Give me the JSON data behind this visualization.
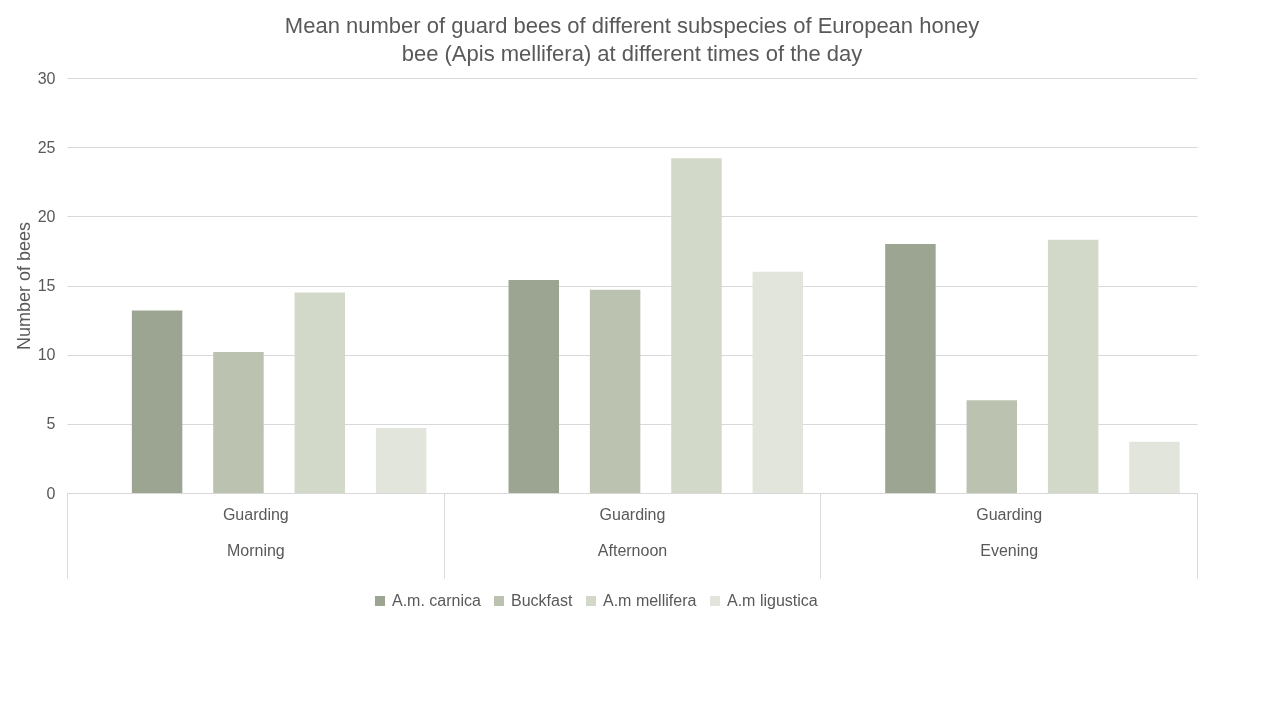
{
  "chart_data": {
    "type": "bar",
    "title": "Mean number of guard bees of different subspecies of European honey bee (Apis mellifera) at different times of the day",
    "ylabel": "Number of bees",
    "categories": [
      "Guarding\nMorning",
      "Guarding\nAfternoon",
      "Guarding\nEvening"
    ],
    "series": [
      {
        "name": "A.m. carnica",
        "color": "#9ca592",
        "values": [
          13.2,
          15.4,
          18.0
        ]
      },
      {
        "name": "Buckfast",
        "color": "#bbc3b0",
        "values": [
          10.2,
          14.7,
          6.7
        ]
      },
      {
        "name": "A.m mellifera",
        "color": "#d3d9c8",
        "values": [
          14.5,
          24.2,
          18.3
        ]
      },
      {
        "name": "A.m ligustica",
        "color": "#e2e5dc",
        "values": [
          4.7,
          16.0,
          3.7
        ]
      }
    ],
    "ylim": [
      0,
      30
    ],
    "yticks": [
      0,
      5,
      10,
      15,
      20,
      25,
      30
    ],
    "grid": "y",
    "legend": "bottom"
  }
}
